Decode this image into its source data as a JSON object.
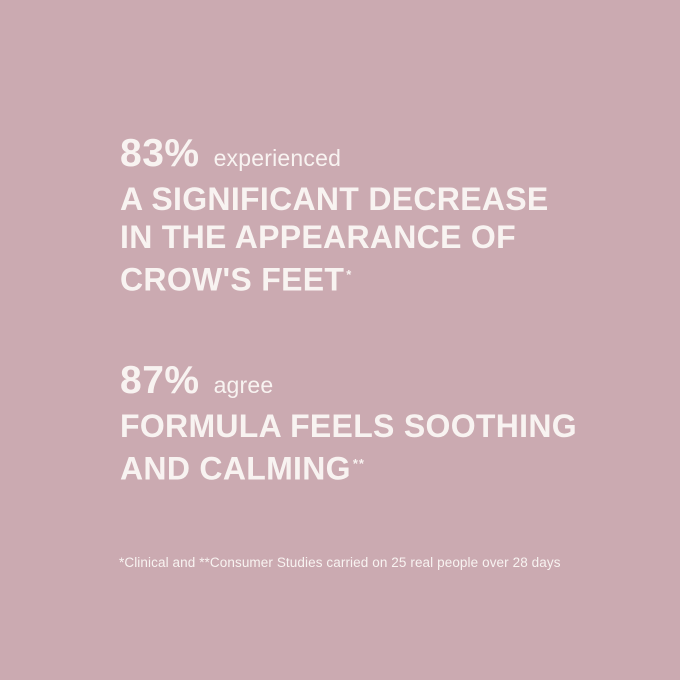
{
  "canvas": {
    "background_color": "#cbaab1",
    "text_color": "#f8f3f1"
  },
  "stats": [
    {
      "percent": "83%",
      "qualifier": "experienced",
      "claim_lines": [
        "A SIGNIFICANT DECREASE",
        "IN THE APPEARANCE OF",
        "CROW'S FEET"
      ],
      "marker": "*"
    },
    {
      "percent": "87%",
      "qualifier": "agree",
      "claim_lines": [
        "FORMULA FEELS SOOTHING",
        "AND CALMING"
      ],
      "marker": "**"
    }
  ],
  "footnote": "*Clinical and **Consumer Studies carried on 25 real people over 28 days"
}
